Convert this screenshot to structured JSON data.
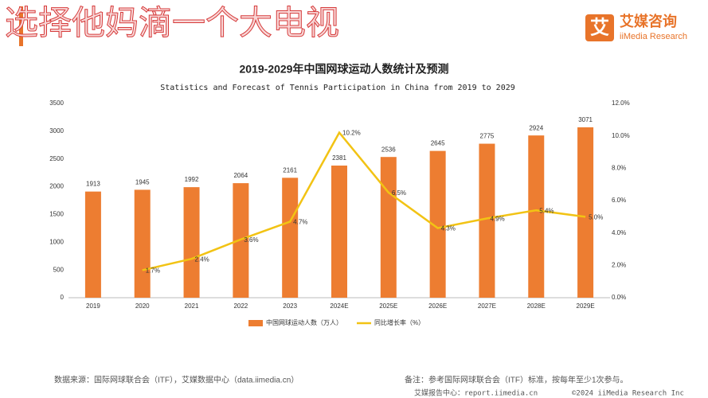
{
  "header": {
    "watermark": "选择他妈滴一个大电视",
    "logo_mark": "艾",
    "logo_cn": "艾媒咨询",
    "logo_en": "iiMedia Research"
  },
  "chart_data": {
    "type": "bar",
    "title": "2019-2029年中国网球运动人数统计及预测",
    "subtitle": "Statistics and Forecast of Tennis Participation in China from 2019 to 2029",
    "categories": [
      "2019",
      "2020",
      "2021",
      "2022",
      "2023",
      "2024E",
      "2025E",
      "2026E",
      "2027E",
      "2028E",
      "2029E"
    ],
    "series": [
      {
        "name": "中国网球运动人数（万人）",
        "type": "bar",
        "color": "#ED7D31",
        "values": [
          1913,
          1945,
          1992,
          2064,
          2161,
          2381,
          2536,
          2645,
          2775,
          2924,
          3071
        ]
      },
      {
        "name": "同比增长率（%）",
        "type": "line",
        "axis": "y2",
        "color": "#F2C314",
        "values": [
          null,
          1.7,
          2.4,
          3.6,
          4.7,
          10.2,
          6.5,
          4.3,
          4.9,
          5.4,
          5.0
        ],
        "value_labels": [
          null,
          "1.7%",
          "2.4%",
          "3.6%",
          "4.7%",
          "10.2%",
          "6.5%",
          "4.3%",
          "4.9%",
          "5.4%",
          "5.0%"
        ]
      }
    ],
    "ylim": [
      0,
      3500
    ],
    "yticks": [
      0,
      500,
      1000,
      1500,
      2000,
      2500,
      3000,
      3500
    ],
    "y2lim": [
      0,
      12
    ],
    "y2ticks": [
      {
        "value": 0,
        "label": "0.0%"
      },
      {
        "value": 2,
        "label": "2.0%"
      },
      {
        "value": 4,
        "label": "4.0%"
      },
      {
        "value": 6,
        "label": "6.0%"
      },
      {
        "value": 8,
        "label": "8.0%"
      },
      {
        "value": 10,
        "label": "10.0%"
      },
      {
        "value": 12,
        "label": "12.0%"
      }
    ],
    "legend": "bottom",
    "grid": false
  },
  "footer": {
    "source": "数据来源：国际网球联合会（ITF），艾媒数据中心（data.iimedia.cn）",
    "note": "备注：参考国际网球联合会（ITF）标准，按每年至少1次参与。",
    "site": "艾媒报告中心：report.iimedia.cn",
    "copyright": "©2024  iiMedia Research  Inc"
  }
}
